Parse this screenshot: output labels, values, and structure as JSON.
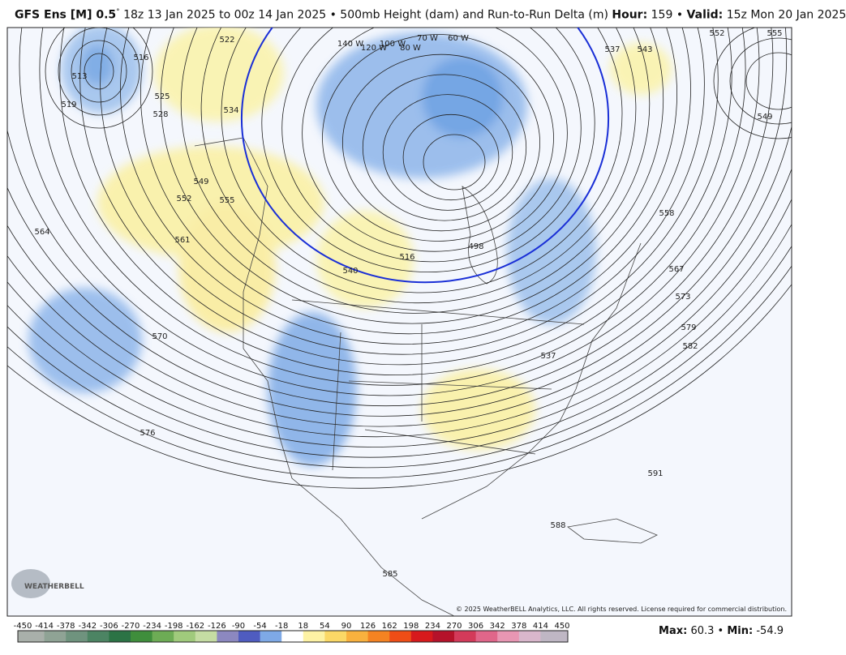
{
  "header": {
    "model": "GFS Ens [M] 0.5",
    "degree": "°",
    "run": "18z 13 Jan 2025 to 00z 14 Jan 2025 • 500mb Height (dam) and Run-to-Run Delta (m)",
    "hour_label": "Hour:",
    "hour_value": "159",
    "separator": "•",
    "valid_label": "Valid:",
    "valid_value": "15z Mon 20 Jan 2025"
  },
  "contour_labels": [
    "522",
    "525",
    "528",
    "534",
    "549",
    "552",
    "555",
    "561",
    "564",
    "570",
    "576",
    "585",
    "588",
    "591",
    "582",
    "579",
    "573",
    "567",
    "558",
    "549",
    "552",
    "555",
    "543",
    "537",
    "540",
    "516",
    "498",
    "537",
    "513",
    "516",
    "519",
    "140 W",
    "120 W",
    "100 W",
    "80 W",
    "70 W",
    "60 W"
  ],
  "logo": "WEATHERBELL",
  "copyright": "© 2025 WeatherBELL Analytics, LLC. All rights reserved. License required for commercial distribution.",
  "colorbar": {
    "ticks": [
      -450,
      -414,
      -378,
      -342,
      -306,
      -270,
      -234,
      -198,
      -162,
      -126,
      -90,
      -54,
      -18,
      18,
      54,
      90,
      126,
      162,
      198,
      234,
      270,
      306,
      342,
      378,
      414,
      450
    ],
    "colors": [
      "#a9b0aa",
      "#8fa395",
      "#6f937e",
      "#4c8463",
      "#2b7345",
      "#3f8e3c",
      "#6dac55",
      "#a0ca7c",
      "#c5dca3",
      "#8c88c0",
      "#4f5cc0",
      "#7ea9e6",
      "#ffffff",
      "#fdf2a4",
      "#fbd866",
      "#f9b13e",
      "#f58322",
      "#ef4d16",
      "#d7191c",
      "#b5122a",
      "#d33a5a",
      "#e0668a",
      "#e896b3",
      "#d9b7cc",
      "#bfb7c4"
    ]
  },
  "stats": {
    "max_label": "Max:",
    "max_value": 60.3,
    "min_label": "Min:",
    "min_value": -54.9
  }
}
